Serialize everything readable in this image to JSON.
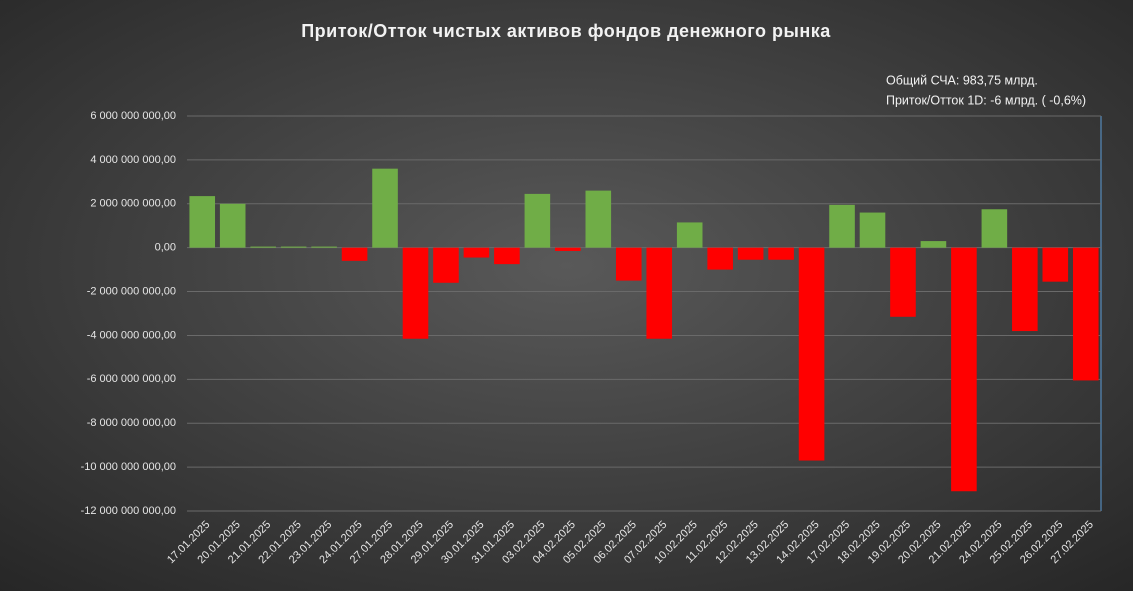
{
  "chart_data": {
    "type": "bar",
    "title": "Приток/Отток чистых активов фондов денежного рынка",
    "annotations": [
      "Общий СЧА: 983,75 млрд.",
      "Приток/Отток 1D: -6 млрд. ( -0,6%)"
    ],
    "categories": [
      "17.01.2025",
      "20.01.2025",
      "21.01.2025",
      "22.01.2025",
      "23.01.2025",
      "24.01.2025",
      "27.01.2025",
      "28.01.2025",
      "29.01.2025",
      "30.01.2025",
      "31.01.2025",
      "03.02.2025",
      "04.02.2025",
      "05.02.2025",
      "06.02.2025",
      "07.02.2025",
      "10.02.2025",
      "11.02.2025",
      "12.02.2025",
      "13.02.2025",
      "14.02.2025",
      "17.02.2025",
      "18.02.2025",
      "19.02.2025",
      "20.02.2025",
      "21.02.2025",
      "24.02.2025",
      "25.02.2025",
      "26.02.2025",
      "27.02.2025"
    ],
    "values": [
      2350000000,
      2000000000,
      50000000,
      50000000,
      50000000,
      -600000000,
      3600000000,
      -4150000000,
      -1600000000,
      -450000000,
      -750000000,
      2450000000,
      -150000000,
      2600000000,
      -1500000000,
      -4150000000,
      1150000000,
      -1000000000,
      -550000000,
      -550000000,
      -9700000000,
      1950000000,
      1600000000,
      -3150000000,
      300000000,
      -11100000000,
      1750000000,
      -3800000000,
      -1550000000,
      -6050000000
    ],
    "positive_color": "#70ad47",
    "negative_color": "#ff0000",
    "ylim": [
      -12000000000,
      6000000000
    ],
    "yticks": [
      {
        "value": -12000000000,
        "label": "-12 000 000 000,00"
      },
      {
        "value": -10000000000,
        "label": "-10 000 000 000,00"
      },
      {
        "value": -8000000000,
        "label": "-8 000 000 000,00"
      },
      {
        "value": -6000000000,
        "label": "-6 000 000 000,00"
      },
      {
        "value": -4000000000,
        "label": "-4 000 000 000,00"
      },
      {
        "value": -2000000000,
        "label": "-2 000 000 000,00"
      },
      {
        "value": 0,
        "label": "0,00"
      },
      {
        "value": 2000000000,
        "label": "2 000 000 000,00"
      },
      {
        "value": 4000000000,
        "label": "4 000 000 000,00"
      },
      {
        "value": 6000000000,
        "label": "6 000 000 000,00"
      }
    ],
    "grid": true
  }
}
